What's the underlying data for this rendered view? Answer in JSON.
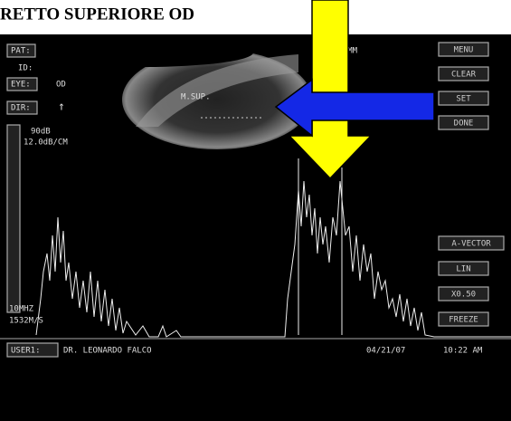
{
  "title": "RETTO SUPERIORE OD",
  "left_panel": {
    "pat": "PAT:",
    "id": "ID:",
    "eye": "EYE:",
    "eye_value": "OD",
    "dir": "DIR:",
    "dir_value": "↑",
    "gain": "90dB",
    "tgc": "12.0dB/CM",
    "frequency": "10MHZ",
    "velocity": "1532M/S"
  },
  "image": {
    "label": "M.SUP.",
    "measure": ".4 MM"
  },
  "buttons_top": [
    "MENU",
    "CLEAR",
    "SET",
    "DONE"
  ],
  "buttons_bottom": [
    "A-VECTOR",
    "LIN",
    "X0.50",
    "FREEZE"
  ],
  "footer": {
    "user": "USER1:",
    "doctor": "DR. LEONARDO FALCO",
    "date": "04/21/07",
    "time": "10:22 AM"
  }
}
